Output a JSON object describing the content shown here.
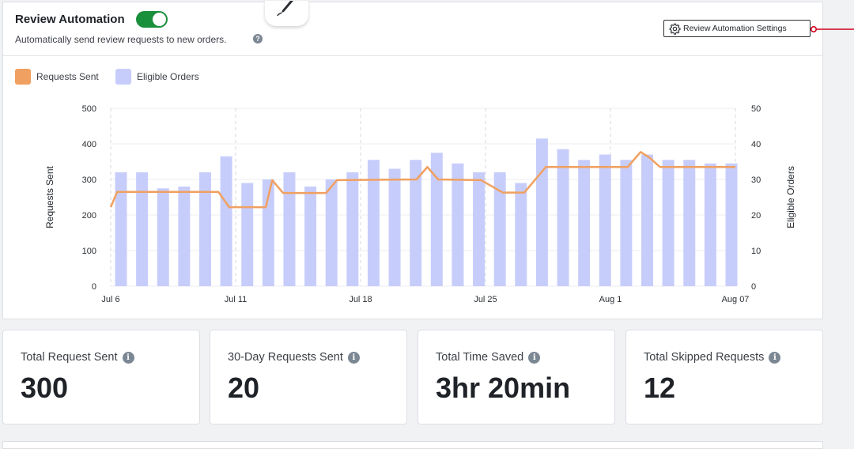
{
  "header": {
    "title": "Review Automation",
    "toggle_on": true,
    "subtitle": "Automatically send review requests to new orders.",
    "settings_label": "Review Automation Settings"
  },
  "colors": {
    "accent_toggle": "#1a8f3c",
    "requests_line": "#f0a060",
    "eligible_bars": "#c7cdfb",
    "connector": "#d0021b"
  },
  "chart_data": {
    "type": "bar",
    "legend": [
      {
        "name": "Requests Sent",
        "color": "#f0a060"
      },
      {
        "name": "Eligible Orders",
        "color": "#c7cdfb"
      }
    ],
    "ylabel_left": "Requests Sent",
    "ylabel_right": "Eligible Orders",
    "ylim_left": [
      0,
      500
    ],
    "ylim_right": [
      0,
      50
    ],
    "yticks_left": [
      "0",
      "100",
      "200",
      "300",
      "400",
      "500"
    ],
    "yticks_right": [
      "0",
      "10",
      "20",
      "30",
      "40",
      "50"
    ],
    "xtick_labels": [
      "Jul 6",
      "Jul 11",
      "Jul 18",
      "Jul 25",
      "Aug 1",
      "Aug 07"
    ],
    "xtick_days": [
      0,
      5.8,
      11.6,
      17.4,
      23.2,
      29
    ],
    "grid": true,
    "series": [
      {
        "name": "Eligible Orders",
        "axis": "right",
        "type": "bar",
        "values": [
          32,
          32,
          27.5,
          28,
          32,
          36.5,
          29,
          30,
          32,
          28,
          30,
          32,
          35.5,
          33,
          35.5,
          37.5,
          34.5,
          32,
          32,
          29,
          41.5,
          38.5,
          35.5,
          37,
          35.5,
          37,
          35.5,
          35.5,
          34.5,
          34.5
        ]
      },
      {
        "name": "Requests Sent",
        "axis": "left",
        "type": "line",
        "points": [
          [
            0,
            222
          ],
          [
            0.3,
            265
          ],
          [
            5,
            265
          ],
          [
            5.5,
            222
          ],
          [
            7.2,
            222
          ],
          [
            7.5,
            298
          ],
          [
            8,
            262
          ],
          [
            10,
            262
          ],
          [
            10.5,
            298
          ],
          [
            14.2,
            300
          ],
          [
            14.7,
            335
          ],
          [
            15.2,
            300
          ],
          [
            17.2,
            298
          ],
          [
            18.2,
            263
          ],
          [
            19.2,
            263
          ],
          [
            20.2,
            335
          ],
          [
            24,
            335
          ],
          [
            24.6,
            377
          ],
          [
            25,
            362
          ],
          [
            25.5,
            335
          ],
          [
            29,
            335
          ]
        ]
      }
    ]
  },
  "stats": [
    {
      "label": "Total Request Sent",
      "value": "300"
    },
    {
      "label": "30-Day Requests Sent",
      "value": "20"
    },
    {
      "label": "Total Time Saved",
      "value": "3hr 20min"
    },
    {
      "label": "Total Skipped Requests",
      "value": "12"
    }
  ],
  "icons": {
    "help": "?",
    "info": "i",
    "pen": "pen-icon",
    "gear": "gear-icon"
  }
}
